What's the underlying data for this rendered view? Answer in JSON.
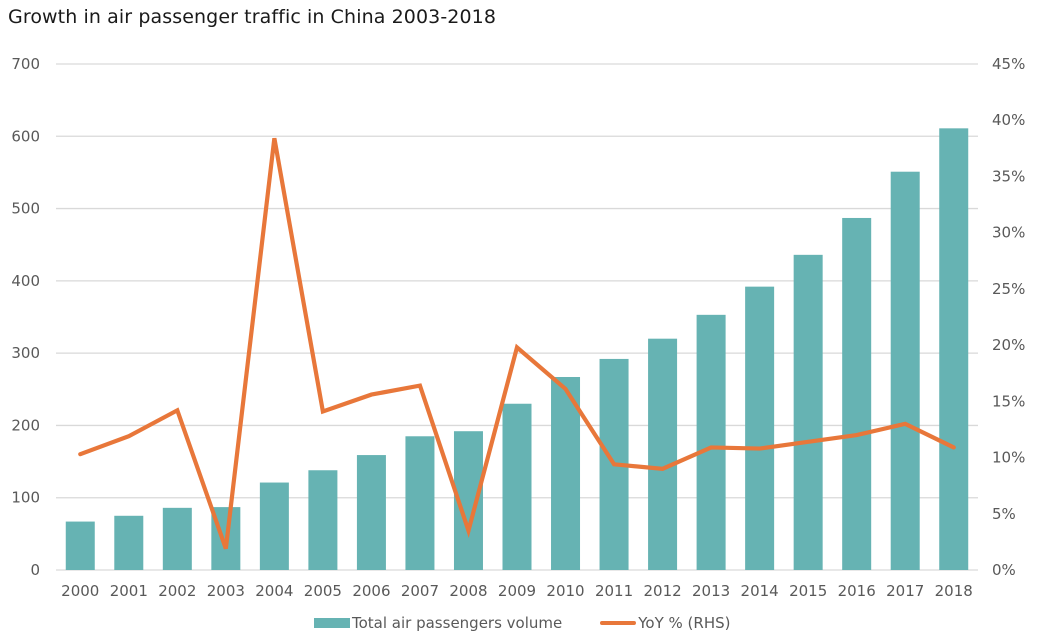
{
  "title": "Growth in air passenger traffic in China 2003-2018",
  "colors": {
    "bar": "#66b3b3",
    "line": "#e8773a",
    "grid": "#d9d9d9",
    "tick_text": "#595959"
  },
  "chart_data": {
    "type": "bar",
    "title": "Growth in air passenger traffic in China 2003-2018",
    "xlabel": "",
    "ylabel": "",
    "y2label": "",
    "categories": [
      "2000",
      "2001",
      "2002",
      "2003",
      "2004",
      "2005",
      "2006",
      "2007",
      "2008",
      "2009",
      "2010",
      "2011",
      "2012",
      "2013",
      "2014",
      "2015",
      "2016",
      "2017",
      "2018"
    ],
    "series": [
      {
        "name": "Total air passengers volume",
        "type": "bar",
        "axis": "left",
        "values": [
          67,
          75,
          86,
          87,
          121,
          138,
          159,
          185,
          192,
          230,
          267,
          292,
          320,
          353,
          392,
          436,
          487,
          551,
          611
        ]
      },
      {
        "name": "YoY % (RHS)",
        "type": "line",
        "axis": "right",
        "values": [
          10.3,
          11.9,
          14.2,
          1.9,
          38.4,
          14.1,
          15.6,
          16.4,
          3.5,
          19.8,
          16.1,
          9.4,
          9.0,
          10.9,
          10.8,
          11.4,
          12.0,
          13.0,
          10.9
        ]
      }
    ],
    "ylim": [
      0,
      700
    ],
    "y_ticks": [
      "0",
      "100",
      "200",
      "300",
      "400",
      "500",
      "600",
      "700"
    ],
    "y2lim": [
      0,
      45
    ],
    "y2_ticks": [
      "0%",
      "5%",
      "10%",
      "15%",
      "20%",
      "25%",
      "30%",
      "35%",
      "40%",
      "45%"
    ],
    "grid": true,
    "legend": "bottom"
  }
}
